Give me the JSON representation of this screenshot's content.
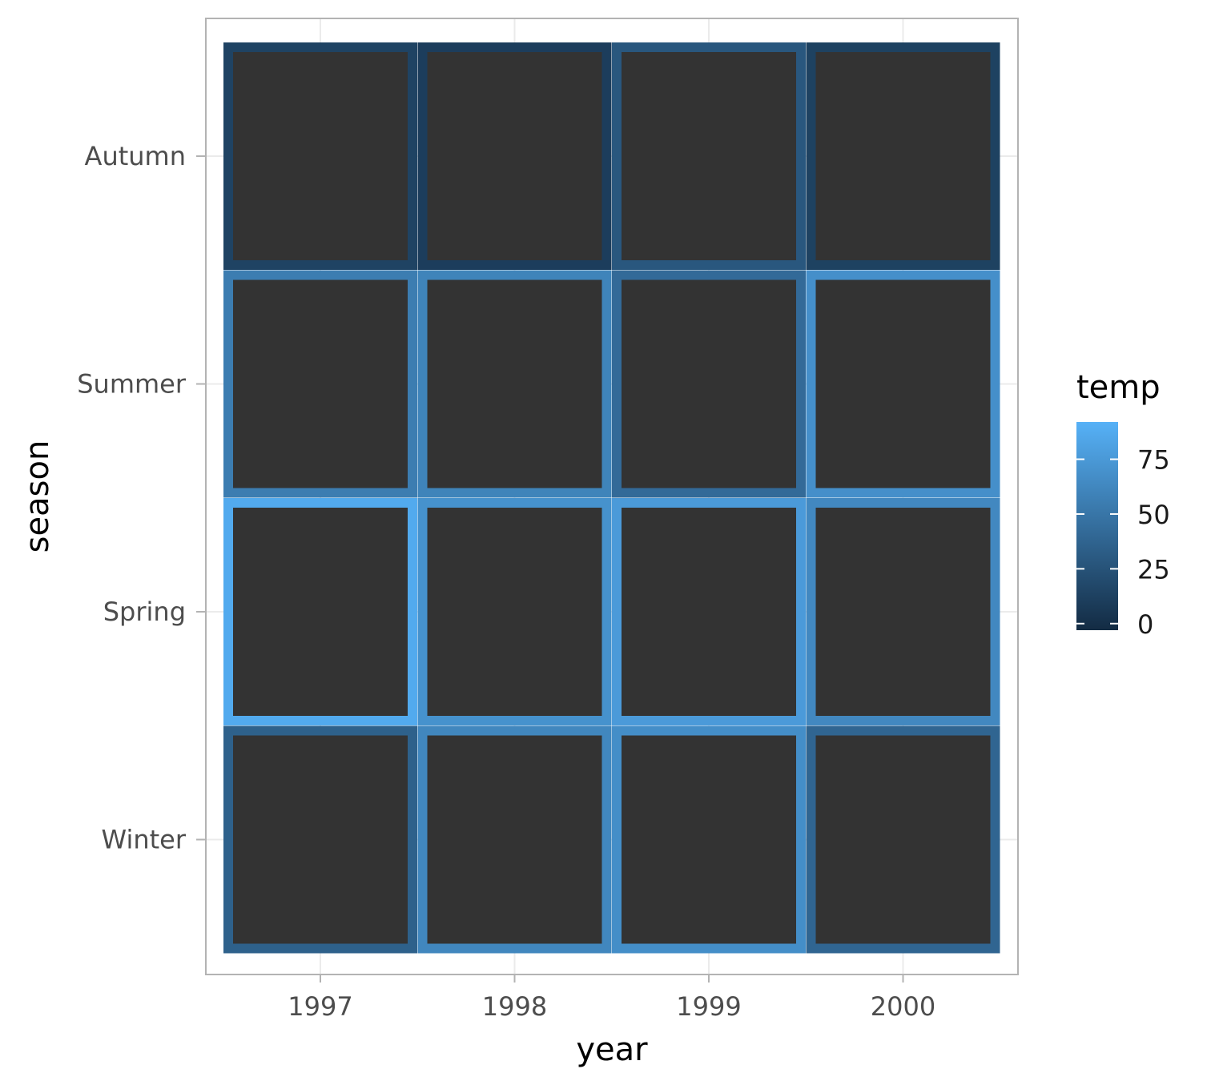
{
  "chart_data": {
    "type": "heatmap",
    "xlabel": "year",
    "ylabel": "season",
    "x_categories": [
      "1997",
      "1998",
      "1999",
      "2000"
    ],
    "y_categories": [
      "Winter",
      "Spring",
      "Summer",
      "Autumn"
    ],
    "fill_color": "#333333",
    "color_aesthetic": "outline",
    "values": [
      {
        "year": "1997",
        "season": "Winter",
        "temp": 35
      },
      {
        "year": "1998",
        "season": "Winter",
        "temp": 62
      },
      {
        "year": "1999",
        "season": "Winter",
        "temp": 67
      },
      {
        "year": "2000",
        "season": "Winter",
        "temp": 38
      },
      {
        "year": "1997",
        "season": "Spring",
        "temp": 87
      },
      {
        "year": "1998",
        "season": "Spring",
        "temp": 70
      },
      {
        "year": "1999",
        "season": "Spring",
        "temp": 76
      },
      {
        "year": "2000",
        "season": "Spring",
        "temp": 63
      },
      {
        "year": "1997",
        "season": "Summer",
        "temp": 55
      },
      {
        "year": "1998",
        "season": "Summer",
        "temp": 60
      },
      {
        "year": "1999",
        "season": "Summer",
        "temp": 42
      },
      {
        "year": "2000",
        "season": "Summer",
        "temp": 68
      },
      {
        "year": "1997",
        "season": "Autumn",
        "temp": 14
      },
      {
        "year": "1998",
        "season": "Autumn",
        "temp": 10
      },
      {
        "year": "1999",
        "season": "Autumn",
        "temp": 28
      },
      {
        "year": "2000",
        "season": "Autumn",
        "temp": 13
      }
    ],
    "legend": {
      "title": "temp",
      "breaks": [
        0,
        25,
        50,
        75
      ],
      "range": [
        -3,
        92
      ],
      "low_color": "#132b43",
      "high_color": "#56b1f7",
      "placement": "right"
    },
    "grid": true,
    "panel_border_color": "#b3b3b3",
    "grid_color": "#ebebeb"
  }
}
